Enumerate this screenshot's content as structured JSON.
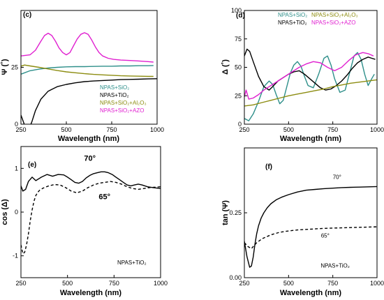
{
  "chart_data": [
    {
      "type": "line",
      "panel_label": "(c)",
      "xlabel": "Wavelength (nm)",
      "ylabel": "Ψ (˚)",
      "xlim": [
        250,
        1000
      ],
      "ylim": [
        0,
        50
      ],
      "xticks": [
        250,
        500,
        750,
        1000
      ],
      "yticks": [
        0,
        25
      ],
      "xtick_labels": [
        "250",
        "500",
        "750",
        "1000"
      ],
      "ytick_labels": [
        "0",
        "25"
      ],
      "grid": false,
      "legend_position": "bottom-right",
      "series": [
        {
          "name": "NPAS+SiO₂",
          "color": "#2e8f8a",
          "dash": "solid",
          "x": [
            250,
            300,
            350,
            400,
            450,
            500,
            550,
            600,
            650,
            700,
            750,
            800,
            850,
            900,
            950,
            980
          ],
          "y": [
            22.0,
            23.5,
            24.2,
            24.7,
            25.0,
            25.2,
            25.3,
            25.3,
            25.4,
            25.5,
            25.5,
            25.6,
            25.6,
            25.7,
            25.7,
            25.8
          ]
        },
        {
          "name": "NPAS+TiO₂",
          "color": "#000000",
          "dash": "solid",
          "x": [
            250,
            275,
            290,
            310,
            330,
            360,
            400,
            450,
            500,
            550,
            600,
            650,
            700,
            750,
            800,
            850,
            900,
            950,
            1000
          ],
          "y": [
            4.0,
            -1.5,
            -2.8,
            1.0,
            6.0,
            11.0,
            14.5,
            16.5,
            17.5,
            18.2,
            18.7,
            19.0,
            19.2,
            19.4,
            19.6,
            19.7,
            19.8,
            19.9,
            20.0
          ]
        },
        {
          "name": "NPAS+SiO₂+Al₂O₃",
          "color": "#8c8c10",
          "dash": "solid",
          "x": [
            250,
            270,
            300,
            350,
            400,
            450,
            500,
            550,
            600,
            650,
            700,
            750,
            800,
            850,
            900,
            950,
            980
          ],
          "y": [
            25.5,
            26.0,
            25.6,
            25.0,
            24.3,
            23.6,
            23.0,
            22.6,
            22.2,
            21.9,
            21.7,
            21.5,
            21.3,
            21.2,
            21.1,
            21.0,
            21.0
          ]
        },
        {
          "name": "NPAS+SiO₂+AZO",
          "color": "#e020d0",
          "dash": "solid",
          "x": [
            250,
            300,
            330,
            360,
            380,
            400,
            420,
            440,
            460,
            480,
            500,
            520,
            540,
            560,
            580,
            600,
            620,
            640,
            660,
            680,
            700,
            730,
            760,
            800,
            850,
            900,
            950,
            980
          ],
          "y": [
            30.0,
            30.5,
            32.5,
            36.5,
            39.0,
            40.0,
            39.0,
            36.5,
            33.5,
            31.5,
            30.5,
            31.5,
            34.5,
            37.5,
            39.5,
            40.2,
            39.5,
            37.0,
            34.0,
            31.5,
            30.0,
            29.0,
            28.5,
            28.2,
            28.0,
            27.8,
            27.5,
            27.3
          ]
        }
      ]
    },
    {
      "type": "line",
      "panel_label": "(d)",
      "xlabel": "Wavelength (nm)",
      "ylabel": "Δ (˚)",
      "xlim": [
        250,
        1000
      ],
      "ylim": [
        0,
        100
      ],
      "xticks": [
        250,
        500,
        750,
        1000
      ],
      "yticks": [
        0,
        25,
        50,
        75,
        100
      ],
      "xtick_labels": [
        "250",
        "500",
        "750",
        "1000"
      ],
      "ytick_labels": [
        "0",
        "25",
        "50",
        "75",
        "100"
      ],
      "grid": false,
      "legend_position": "top",
      "series": [
        {
          "name": "NPAS+SiO₂",
          "color": "#2e8f8a",
          "dash": "solid",
          "x": [
            250,
            275,
            300,
            330,
            360,
            390,
            410,
            430,
            450,
            470,
            490,
            510,
            530,
            550,
            570,
            590,
            610,
            640,
            670,
            700,
            720,
            740,
            760,
            790,
            820,
            850,
            870,
            890,
            910,
            930,
            950,
            970,
            985
          ],
          "y": [
            5,
            3,
            9,
            20,
            33,
            38,
            35,
            26,
            18,
            21,
            33,
            45,
            52,
            55,
            51,
            42,
            34,
            32,
            44,
            58,
            60,
            52,
            40,
            28,
            30,
            48,
            60,
            63,
            57,
            44,
            34,
            40,
            44
          ]
        },
        {
          "name": "NPAS+TiO₂",
          "color": "#000000",
          "dash": "solid",
          "x": [
            250,
            265,
            280,
            300,
            330,
            360,
            390,
            410,
            440,
            470,
            500,
            530,
            560,
            590,
            620,
            650,
            680,
            710,
            740,
            770,
            800,
            830,
            860,
            890,
            920,
            950,
            970,
            990
          ],
          "y": [
            60,
            66,
            64,
            55,
            42,
            33,
            30,
            33,
            38,
            41,
            44,
            46,
            47,
            44,
            40,
            36,
            32,
            30,
            31,
            34,
            38,
            43,
            49,
            54,
            57,
            59,
            58,
            57
          ]
        },
        {
          "name": "NPAS+SiO₂+Al₂O₃",
          "color": "#8c8c10",
          "dash": "solid",
          "x": [
            250,
            300,
            350,
            400,
            450,
            500,
            550,
            600,
            650,
            700,
            750,
            800,
            850,
            900,
            950,
            1000
          ],
          "y": [
            16,
            17,
            19,
            21,
            23,
            25,
            26.5,
            28,
            29.5,
            31,
            33,
            34.5,
            36,
            37,
            38,
            39
          ]
        },
        {
          "name": "NPAS+SiO₂+AZO",
          "color": "#e020d0",
          "dash": "solid",
          "x": [
            250,
            260,
            275,
            300,
            330,
            360,
            400,
            440,
            480,
            520,
            560,
            600,
            640,
            680,
            720,
            760,
            800,
            840,
            880,
            920,
            950,
            980
          ],
          "y": [
            24,
            30,
            22,
            23,
            26,
            30,
            34,
            38,
            42,
            46,
            50,
            53,
            55,
            54,
            50,
            47,
            50,
            56,
            61,
            63,
            62,
            60
          ]
        }
      ]
    },
    {
      "type": "line",
      "panel_label": "(e)",
      "xlabel": "Wavelength (nm)",
      "ylabel": "cos (Δ)",
      "xlim": [
        250,
        1000
      ],
      "ylim": [
        -1.5,
        1.5
      ],
      "xticks": [
        250,
        500,
        750,
        1000
      ],
      "yticks": [
        -1,
        0,
        1
      ],
      "xtick_labels": [
        "250",
        "500",
        "750",
        "1000"
      ],
      "ytick_labels": [
        "-1",
        "0",
        "1"
      ],
      "grid": false,
      "annotations": [
        {
          "text": "70°",
          "x": 600,
          "y": 1.25,
          "size": "large"
        },
        {
          "text": "65°",
          "x": 750,
          "y": 0.2,
          "size": "large"
        },
        {
          "text": "NPAS+TiO₂",
          "x": 880,
          "y": -1.05,
          "size": "small"
        }
      ],
      "series": [
        {
          "name": "70°",
          "color": "#000000",
          "dash": "solid",
          "x": [
            250,
            260,
            275,
            290,
            310,
            330,
            360,
            390,
            420,
            450,
            480,
            500,
            520,
            540,
            560,
            580,
            600,
            620,
            640,
            660,
            680,
            700,
            720,
            740,
            760,
            780,
            800,
            820,
            840,
            860,
            880,
            900,
            930,
            960,
            1000
          ],
          "y": [
            0.6,
            0.48,
            0.52,
            0.7,
            0.8,
            0.72,
            0.8,
            0.86,
            0.82,
            0.86,
            0.85,
            0.8,
            0.74,
            0.68,
            0.66,
            0.7,
            0.78,
            0.84,
            0.88,
            0.9,
            0.92,
            0.92,
            0.9,
            0.86,
            0.8,
            0.74,
            0.68,
            0.62,
            0.6,
            0.62,
            0.64,
            0.62,
            0.58,
            0.56,
            0.54
          ]
        },
        {
          "name": "65°",
          "color": "#000000",
          "dash": "dashed",
          "x": [
            250,
            260,
            270,
            280,
            290,
            300,
            310,
            320,
            330,
            340,
            350,
            370,
            400,
            430,
            460,
            490,
            520,
            550,
            580,
            610,
            640,
            670,
            700,
            730,
            760,
            790,
            820,
            850,
            880,
            910,
            940,
            970,
            1000
          ],
          "y": [
            -0.75,
            -0.95,
            -0.92,
            -0.75,
            -0.5,
            -0.2,
            0.05,
            0.25,
            0.38,
            0.45,
            0.5,
            0.55,
            0.6,
            0.63,
            0.62,
            0.56,
            0.48,
            0.44,
            0.48,
            0.56,
            0.62,
            0.66,
            0.68,
            0.7,
            0.68,
            0.64,
            0.58,
            0.54,
            0.52,
            0.54,
            0.56,
            0.57,
            0.58
          ]
        }
      ]
    },
    {
      "type": "line",
      "panel_label": "(f)",
      "xlabel": "Wavelength (nm)",
      "ylabel": "tan (Ψ)",
      "xlim": [
        250,
        1000
      ],
      "ylim": [
        0,
        0.5
      ],
      "xticks": [
        250,
        500,
        750,
        1000
      ],
      "yticks": [
        0.0,
        0.25
      ],
      "xtick_labels": [
        "250",
        "500",
        "750",
        "1000"
      ],
      "ytick_labels": [
        "0.00",
        "0.25"
      ],
      "grid": false,
      "annotations": [
        {
          "text": "70°",
          "x": 770,
          "y": 0.375,
          "size": "small"
        },
        {
          "text": "65°",
          "x": 770,
          "y": 0.155,
          "size": "small"
        },
        {
          "text": "NPAS+TiO₂",
          "x": 800,
          "y": 0.055,
          "size": "small"
        }
      ],
      "series": [
        {
          "name": "70°",
          "color": "#000000",
          "dash": "solid",
          "x": [
            250,
            265,
            280,
            290,
            300,
            310,
            320,
            330,
            345,
            360,
            380,
            400,
            430,
            460,
            500,
            550,
            600,
            650,
            700,
            750,
            800,
            850,
            900,
            950,
            1000
          ],
          "y": [
            0.14,
            0.08,
            0.04,
            0.045,
            0.08,
            0.13,
            0.17,
            0.2,
            0.23,
            0.25,
            0.27,
            0.285,
            0.3,
            0.31,
            0.32,
            0.33,
            0.337,
            0.34,
            0.343,
            0.345,
            0.347,
            0.348,
            0.349,
            0.35,
            0.351
          ]
        },
        {
          "name": "65°",
          "color": "#000000",
          "dash": "dashed",
          "x": [
            250,
            270,
            290,
            300,
            320,
            350,
            400,
            450,
            500,
            550,
            600,
            650,
            700,
            750,
            800,
            850,
            900,
            950,
            1000
          ],
          "y": [
            0.135,
            0.12,
            0.112,
            0.12,
            0.135,
            0.15,
            0.165,
            0.175,
            0.18,
            0.184,
            0.186,
            0.188,
            0.19,
            0.191,
            0.192,
            0.193,
            0.194,
            0.195,
            0.196
          ]
        }
      ]
    }
  ]
}
